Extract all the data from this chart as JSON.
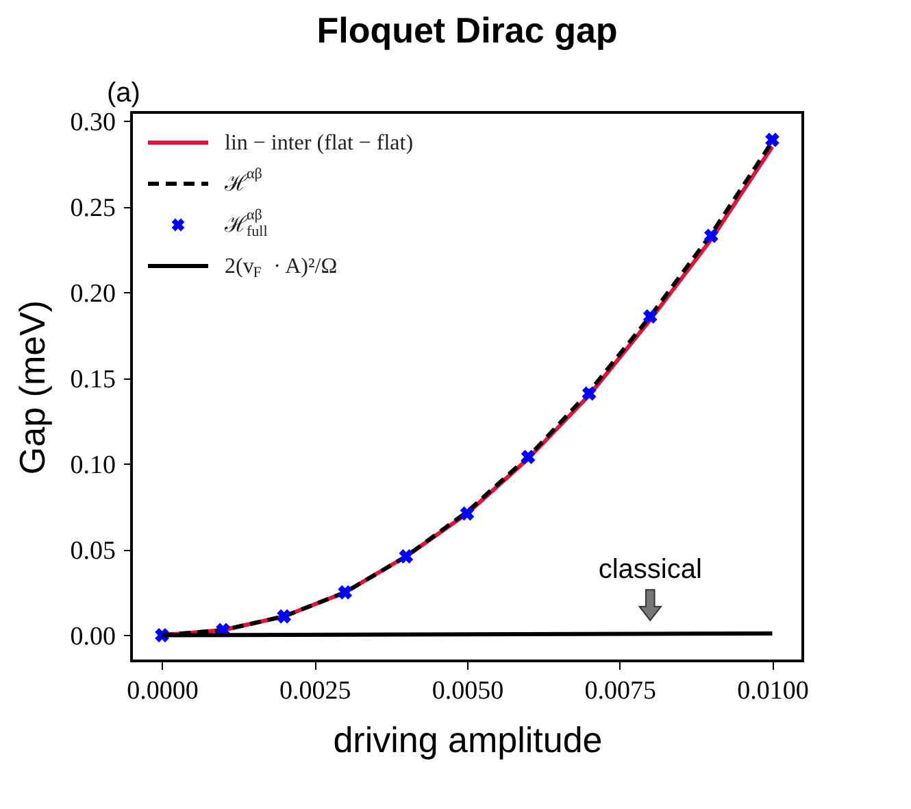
{
  "chart_data": {
    "type": "line",
    "title": "Floquet Dirac gap",
    "xlabel": "driving amplitude",
    "ylabel": "Gap (meV)",
    "annotations": [
      "(a)",
      {
        "text": "classical",
        "x": 0.008,
        "y": 0.0
      }
    ],
    "series": [
      {
        "name": "lin − inter (flat − flat)",
        "color": "#e0143c",
        "line_style": "solid",
        "x": [
          0,
          0.001,
          0.002,
          0.003,
          0.004,
          0.005,
          0.006,
          0.007,
          0.008,
          0.009,
          0.01
        ],
        "values": [
          0,
          0.003,
          0.011,
          0.025,
          0.046,
          0.071,
          0.103,
          0.14,
          0.184,
          0.231,
          0.285
        ]
      },
      {
        "name": "ℋ$^{αβ}$",
        "color": "#000000",
        "line_style": "dashed",
        "x": [
          0,
          0.001,
          0.002,
          0.003,
          0.004,
          0.005,
          0.006,
          0.007,
          0.008,
          0.009,
          0.01
        ],
        "values": [
          0,
          0.003,
          0.011,
          0.025,
          0.046,
          0.072,
          0.104,
          0.142,
          0.186,
          0.234,
          0.288
        ]
      },
      {
        "name": "ℋ$^{αβ}$$_{full}$",
        "color": "#0000ff",
        "type": "scatter",
        "marker": "cross",
        "x": [
          0,
          0.001,
          0.002,
          0.003,
          0.004,
          0.005,
          0.006,
          0.007,
          0.008,
          0.009,
          0.01
        ],
        "values": [
          0,
          0.003,
          0.011,
          0.025,
          0.046,
          0.071,
          0.104,
          0.141,
          0.186,
          0.233,
          0.289
        ]
      },
      {
        "name": "2(v$_{F}$ · A)²/Ω",
        "color": "#000000",
        "line_style": "solid",
        "x": [
          0,
          0.01
        ],
        "values": [
          0,
          0.001
        ]
      }
    ],
    "xlim": [
      -0.0005,
      0.0105
    ],
    "ylim": [
      -0.015,
      0.305
    ],
    "xticks": [
      {
        "value": 0,
        "label": "0.0000"
      },
      {
        "value": 0.0025,
        "label": "0.0025"
      },
      {
        "value": 0.005,
        "label": "0.0050"
      },
      {
        "value": 0.0075,
        "label": "0.0075"
      },
      {
        "value": 0.01,
        "label": "0.0100"
      }
    ],
    "yticks": [
      {
        "value": 0,
        "label": "0.00"
      },
      {
        "value": 0.05,
        "label": "0.05"
      },
      {
        "value": 0.1,
        "label": "0.10"
      },
      {
        "value": 0.15,
        "label": "0.15"
      },
      {
        "value": 0.2,
        "label": "0.20"
      },
      {
        "value": 0.25,
        "label": "0.25"
      },
      {
        "value": 0.3,
        "label": "0.30"
      }
    ],
    "grid": false,
    "legend": "top left"
  }
}
